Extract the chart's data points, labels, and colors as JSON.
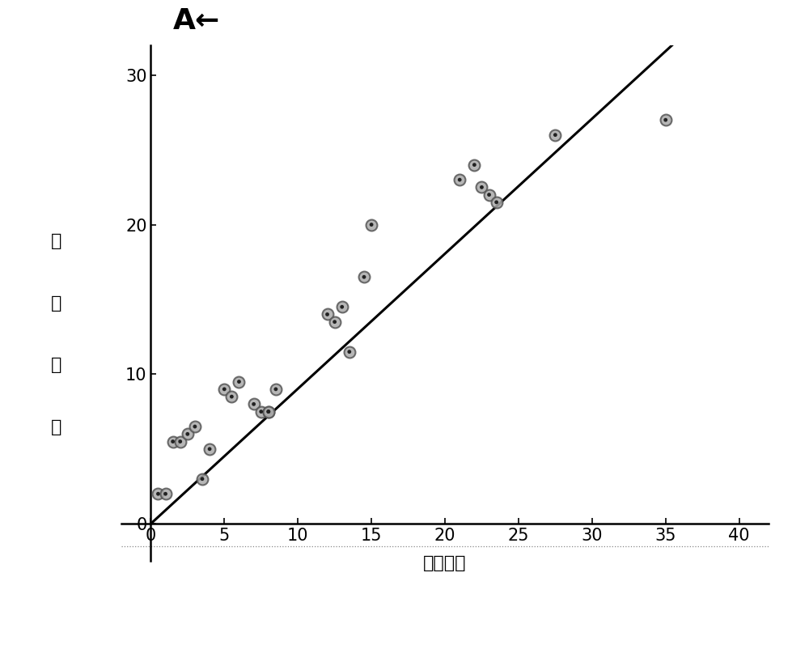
{
  "scatter_x": [
    0.5,
    1.0,
    1.5,
    2.0,
    2.5,
    3.0,
    3.5,
    4.0,
    5.0,
    5.5,
    6.0,
    7.0,
    7.5,
    8.0,
    8.0,
    8.5,
    12.0,
    12.5,
    13.0,
    13.5,
    14.5,
    15.0,
    21.0,
    22.0,
    22.5,
    23.0,
    23.5,
    27.5,
    35.0
  ],
  "scatter_y": [
    2.0,
    2.0,
    5.5,
    5.5,
    6.0,
    6.5,
    3.0,
    5.0,
    9.0,
    8.5,
    9.5,
    8.0,
    7.5,
    7.5,
    7.5,
    9.0,
    14.0,
    13.5,
    14.5,
    11.5,
    16.5,
    20.0,
    23.0,
    24.0,
    22.5,
    22.0,
    21.5,
    26.0,
    27.0
  ],
  "line_x": [
    0,
    36
  ],
  "line_y": [
    0,
    32.5
  ],
  "xlabel": "人工计数",
  "ylabel": "自动计数",
  "ylabel_chars": [
    "自",
    "动",
    "计",
    "数"
  ],
  "title": "A←",
  "xlim": [
    -2,
    42
  ],
  "ylim": [
    -2.5,
    32
  ],
  "xticks": [
    0,
    5,
    10,
    15,
    20,
    25,
    30,
    35,
    40
  ],
  "yticks": [
    0,
    10,
    20,
    30
  ],
  "scatter_color": "#aaaaaa",
  "scatter_edge_color": "#555555",
  "line_color": "#000000",
  "bg_color": "#ffffff",
  "scatter_size": 100,
  "line_width": 2.2,
  "title_fontsize": 26,
  "label_fontsize": 16,
  "tick_fontsize": 15,
  "dot_y": -1.5
}
